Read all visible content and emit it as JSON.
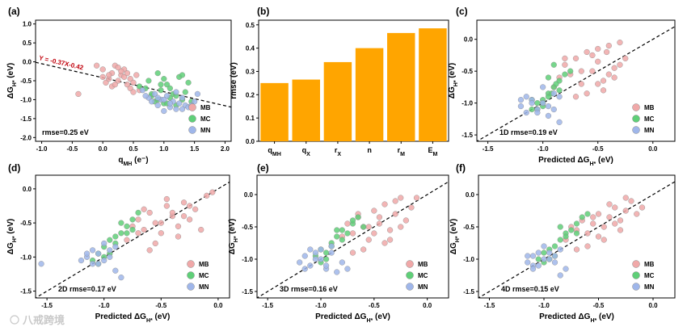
{
  "colors": {
    "MB": "#f0a8a8",
    "MC": "#5fcf78",
    "MN": "#9fb6ea",
    "bar": "#ffa500",
    "fit_line": "#c0000b"
  },
  "watermark": "八戒跨境",
  "chart_data": [
    {
      "panel": "(a)",
      "type": "scatter",
      "xlabel": "q",
      "xlabel_sub": "MH",
      "xlabel_unit": " (e⁻)",
      "ylabel": "ΔG",
      "ylabel_sub": "H*",
      "ylabel_unit": " (eV)",
      "xlim": [
        -1.1,
        2.1
      ],
      "ylim": [
        -2.1,
        1.1
      ],
      "xticks": [
        -1.0,
        -0.5,
        0.0,
        0.5,
        1.0,
        1.5,
        2.0
      ],
      "yticks": [
        1.0,
        0.5,
        0.0,
        -0.5,
        -1.0,
        -1.5,
        -2.0
      ],
      "fit": {
        "slope": -0.37,
        "intercept": -0.42,
        "label": "Y = -0.37X-0.42"
      },
      "annotation": "rmse=0.25 eV",
      "legend": [
        "MB",
        "MC",
        "MN"
      ],
      "series": [
        {
          "name": "MB",
          "x": [
            -0.4,
            -0.1,
            0.0,
            0.05,
            0.1,
            0.15,
            0.2,
            0.25,
            0.3,
            0.35,
            0.4,
            0.45,
            0.5,
            0.55,
            0.6,
            0.15,
            0.3,
            0.45,
            0.0,
            0.2,
            0.35,
            0.5,
            0.25,
            0.4,
            0.1
          ],
          "y": [
            -0.85,
            -0.1,
            -0.4,
            -0.55,
            -0.45,
            -0.3,
            -0.1,
            -0.5,
            -0.35,
            -0.2,
            -0.6,
            -0.45,
            -0.55,
            -0.35,
            -0.75,
            -0.65,
            -0.25,
            -0.7,
            -0.2,
            -0.6,
            -0.4,
            -0.8,
            -0.15,
            -0.3,
            -0.35
          ]
        },
        {
          "name": "MC",
          "x": [
            0.6,
            0.7,
            0.75,
            0.8,
            0.85,
            0.9,
            0.95,
            1.0,
            1.05,
            1.1,
            1.15,
            1.2,
            1.25,
            1.3,
            1.35,
            1.4,
            1.45,
            0.9,
            1.0,
            1.1,
            0.8,
            1.2,
            1.3,
            0.95,
            1.05
          ],
          "y": [
            -0.65,
            -0.7,
            -0.5,
            -0.9,
            -1.05,
            -0.3,
            -0.75,
            -1.1,
            -0.6,
            -0.95,
            -0.85,
            -1.15,
            -0.4,
            -1.0,
            -0.8,
            -0.55,
            -1.05,
            -1.0,
            -0.45,
            -0.7,
            -0.85,
            -0.9,
            -0.35,
            -0.6,
            -1.1
          ]
        },
        {
          "name": "MN",
          "x": [
            0.65,
            0.75,
            0.8,
            0.85,
            0.9,
            0.95,
            1.0,
            1.05,
            1.1,
            1.15,
            1.2,
            1.25,
            1.3,
            1.35,
            1.4,
            1.5,
            1.55,
            0.7,
            1.0,
            1.2,
            1.45,
            0.9,
            1.1,
            1.3
          ],
          "y": [
            -0.75,
            -0.95,
            -1.05,
            -0.85,
            -1.15,
            -1.0,
            -1.3,
            -0.9,
            -1.2,
            -1.05,
            -1.25,
            -1.1,
            -0.95,
            -1.15,
            -1.2,
            -1.05,
            -0.85,
            -0.9,
            -1.0,
            -0.8,
            -1.15,
            -0.95,
            -1.1,
            -1.25
          ]
        }
      ]
    },
    {
      "panel": "(b)",
      "type": "bar",
      "ylabel": "rmse (eV)",
      "categories": [
        {
          "base": "q",
          "sub": "MH"
        },
        {
          "base": "q",
          "sub": "X"
        },
        {
          "base": "r",
          "sub": "X"
        },
        {
          "base": "n",
          "sub": ""
        },
        {
          "base": "r",
          "sub": "M"
        },
        {
          "base": "E",
          "sub": "M"
        }
      ],
      "values": [
        0.25,
        0.265,
        0.34,
        0.4,
        0.465,
        0.485
      ],
      "ylim": [
        0,
        0.52
      ],
      "yticks": [
        0.0,
        0.1,
        0.2,
        0.3,
        0.4,
        0.5
      ]
    },
    {
      "panel": "(c)",
      "type": "scatter",
      "xlabel": "Predicted ΔG",
      "xlabel_sub": "H*",
      "xlabel_unit": " (eV)",
      "ylabel": "ΔG",
      "ylabel_sub": "H*",
      "ylabel_unit": " (eV)",
      "xlim": [
        -1.6,
        0.2
      ],
      "ylim": [
        -1.6,
        0.3
      ],
      "xticks": [
        -1.5,
        -1.0,
        -0.5,
        0.0
      ],
      "yticks": [
        0.0,
        -0.5,
        -1.0,
        -1.5
      ],
      "annotation": "1D rmse=0.19 eV",
      "legend": [
        "MB",
        "MC",
        "MN"
      ],
      "series": [
        {
          "name": "MB",
          "x": [
            -0.9,
            -0.85,
            -0.8,
            -0.75,
            -0.7,
            -0.65,
            -0.6,
            -0.55,
            -0.5,
            -0.45,
            -0.4,
            -0.35,
            -0.3,
            -0.25,
            -0.7,
            -0.6,
            -0.5,
            -0.4,
            -0.3,
            -0.55,
            -0.45,
            -0.65,
            -0.35,
            -0.8,
            -0.5,
            -0.42
          ],
          "y": [
            -0.75,
            -0.6,
            -0.4,
            -0.55,
            -0.3,
            -0.7,
            -0.2,
            -0.5,
            -0.35,
            -0.65,
            -0.1,
            -0.45,
            -0.05,
            -0.3,
            -0.9,
            -0.85,
            -0.15,
            -0.55,
            -0.4,
            -0.25,
            -0.8,
            -0.5,
            -0.6,
            -0.3,
            -0.7,
            -0.2
          ]
        },
        {
          "name": "MC",
          "x": [
            -1.1,
            -1.05,
            -1.0,
            -0.95,
            -0.9,
            -0.85,
            -0.8,
            -1.0,
            -0.9,
            -0.95,
            -1.05,
            -0.85,
            -0.75,
            -1.1,
            -0.95,
            -0.88,
            -1.0,
            -0.92
          ],
          "y": [
            -1.1,
            -1.0,
            -0.95,
            -0.85,
            -0.75,
            -0.65,
            -0.55,
            -1.05,
            -0.4,
            -0.9,
            -1.1,
            -0.8,
            -0.5,
            -0.95,
            -0.6,
            -0.7,
            -1.0,
            -0.85
          ]
        },
        {
          "name": "MN",
          "x": [
            -1.2,
            -1.15,
            -1.1,
            -1.05,
            -1.0,
            -0.95,
            -0.9,
            -0.85,
            -1.15,
            -1.1,
            -1.05,
            -1.0,
            -0.95,
            -1.2,
            -0.9,
            -0.85
          ],
          "y": [
            -1.05,
            -1.15,
            -0.95,
            -1.1,
            -1.0,
            -1.2,
            -0.85,
            -1.3,
            -0.9,
            -1.0,
            -1.15,
            -0.75,
            -1.05,
            -0.95,
            -1.1,
            -0.9
          ]
        }
      ]
    },
    {
      "panel": "(d)",
      "type": "scatter",
      "xlabel": "Predicted ΔG",
      "xlabel_sub": "H*",
      "xlabel_unit": " (eV)",
      "ylabel": "ΔG",
      "ylabel_sub": "H*",
      "ylabel_unit": " (eV)",
      "xlim": [
        -1.6,
        0.1
      ],
      "ylim": [
        -1.6,
        0.2
      ],
      "xticks": [
        -1.5,
        -1.0,
        -0.5,
        0.0
      ],
      "yticks": [
        0.0,
        -0.5,
        -1.0,
        -1.5
      ],
      "annotation": "2D rmse=0.17 eV",
      "legend": [
        "MB",
        "MC",
        "MN"
      ],
      "series": [
        {
          "name": "MB",
          "x": [
            -0.8,
            -0.75,
            -0.7,
            -0.65,
            -0.6,
            -0.55,
            -0.5,
            -0.45,
            -0.4,
            -0.35,
            -0.3,
            -0.25,
            -0.2,
            -0.15,
            -0.1,
            -0.65,
            -0.55,
            -0.45,
            -0.35,
            -0.6,
            -0.5,
            -0.4,
            -0.3,
            -0.7,
            -0.05,
            -0.25
          ],
          "y": [
            -0.75,
            -0.55,
            -0.45,
            -0.6,
            -0.35,
            -0.5,
            -0.65,
            -0.25,
            -0.4,
            -0.55,
            -0.2,
            -0.45,
            -0.3,
            -0.6,
            -0.1,
            -0.3,
            -0.8,
            -0.15,
            -0.7,
            -0.9,
            -0.5,
            -0.35,
            -0.4,
            -0.65,
            -0.05,
            -0.25
          ]
        },
        {
          "name": "MC",
          "x": [
            -1.1,
            -1.05,
            -1.0,
            -0.95,
            -0.9,
            -0.85,
            -0.8,
            -0.75,
            -0.7,
            -1.0,
            -0.9,
            -0.8,
            -0.95,
            -0.85,
            -0.75,
            -1.05
          ],
          "y": [
            -1.05,
            -0.95,
            -0.85,
            -0.75,
            -0.7,
            -0.65,
            -0.55,
            -0.45,
            -0.35,
            -1.0,
            -0.8,
            -0.65,
            -0.95,
            -0.5,
            -0.6,
            -1.1
          ]
        },
        {
          "name": "MN",
          "x": [
            -1.55,
            -1.2,
            -1.15,
            -1.1,
            -1.05,
            -1.0,
            -0.95,
            -0.9,
            -1.15,
            -1.05,
            -1.0,
            -0.95,
            -0.9,
            -1.1,
            -0.85
          ],
          "y": [
            -1.1,
            -1.05,
            -1.0,
            -1.1,
            -0.95,
            -1.05,
            -0.9,
            -1.2,
            -0.95,
            -1.1,
            -0.8,
            -1.0,
            -0.85,
            -0.9,
            -1.3
          ]
        }
      ]
    },
    {
      "panel": "(e)",
      "type": "scatter",
      "xlabel": "Predicted ΔG",
      "xlabel_sub": "H*",
      "xlabel_unit": " (eV)",
      "ylabel": "ΔG",
      "ylabel_sub": "H*",
      "ylabel_unit": " (eV)",
      "xlim": [
        -1.6,
        0.2
      ],
      "ylim": [
        -1.6,
        0.3
      ],
      "xticks": [
        -1.5,
        -1.0,
        -0.5,
        0.0
      ],
      "yticks": [
        0.0,
        -0.5,
        -1.0,
        -1.5
      ],
      "annotation": "3D rmse=0.16 eV",
      "legend": [
        "MB",
        "MC",
        "MN"
      ],
      "series": [
        {
          "name": "MB",
          "x": [
            -0.8,
            -0.75,
            -0.7,
            -0.65,
            -0.6,
            -0.55,
            -0.5,
            -0.45,
            -0.4,
            -0.35,
            -0.3,
            -0.25,
            -0.2,
            -0.15,
            -0.6,
            -0.5,
            -0.4,
            -0.3,
            -0.45,
            -0.55,
            -0.35,
            -0.25,
            -0.65,
            -0.1,
            -0.7
          ],
          "y": [
            -0.65,
            -0.45,
            -0.6,
            -0.35,
            -0.5,
            -0.7,
            -0.25,
            -0.45,
            -0.15,
            -0.55,
            -0.3,
            -0.05,
            -0.4,
            -0.2,
            -0.85,
            -0.6,
            -0.75,
            -0.1,
            -0.35,
            -0.5,
            -0.7,
            -0.5,
            -0.3,
            -0.05,
            -0.9
          ]
        },
        {
          "name": "MC",
          "x": [
            -1.05,
            -1.0,
            -0.95,
            -0.9,
            -0.85,
            -0.8,
            -0.75,
            -0.7,
            -0.65,
            -0.6,
            -0.9,
            -0.8,
            -0.95,
            -0.85,
            -1.0,
            -0.7
          ],
          "y": [
            -0.95,
            -0.85,
            -0.9,
            -0.75,
            -0.65,
            -0.55,
            -0.6,
            -0.45,
            -0.35,
            -0.5,
            -0.8,
            -0.7,
            -1.0,
            -0.55,
            -1.05,
            -0.4
          ]
        },
        {
          "name": "MN",
          "x": [
            -1.2,
            -1.15,
            -1.1,
            -1.05,
            -1.0,
            -0.95,
            -0.9,
            -0.85,
            -0.8,
            -1.15,
            -1.05,
            -1.0,
            -0.95,
            -0.9,
            -1.1,
            -0.75
          ],
          "y": [
            -1.05,
            -0.95,
            -1.1,
            -1.0,
            -0.85,
            -1.15,
            -0.9,
            -1.2,
            -1.05,
            -1.15,
            -0.9,
            -1.0,
            -1.1,
            -0.8,
            -0.85,
            -1.15
          ]
        }
      ]
    },
    {
      "panel": "(f)",
      "type": "scatter",
      "xlabel": "Predicted ΔG",
      "xlabel_sub": "H*",
      "xlabel_unit": " (eV)",
      "ylabel": "ΔG",
      "ylabel_sub": "H*",
      "ylabel_unit": " (eV)",
      "xlim": [
        -1.6,
        0.2
      ],
      "ylim": [
        -1.6,
        0.3
      ],
      "xticks": [
        -1.5,
        -1.0,
        -0.5,
        0.0
      ],
      "yticks": [
        0.0,
        -0.5,
        -1.0,
        -1.5
      ],
      "annotation": "4D rmse=0.15 eV",
      "legend": [
        "MB",
        "MC",
        "MN"
      ],
      "series": [
        {
          "name": "MB",
          "x": [
            -0.8,
            -0.75,
            -0.7,
            -0.65,
            -0.6,
            -0.55,
            -0.5,
            -0.45,
            -0.4,
            -0.35,
            -0.3,
            -0.25,
            -0.2,
            -0.15,
            -0.6,
            -0.5,
            -0.4,
            -0.3,
            -0.55,
            -0.45,
            -0.35,
            -0.25,
            -0.1,
            -0.7
          ],
          "y": [
            -0.7,
            -0.5,
            -0.55,
            -0.4,
            -0.6,
            -0.45,
            -0.3,
            -0.5,
            -0.35,
            -0.2,
            -0.4,
            -0.25,
            -0.1,
            -0.3,
            -0.8,
            -0.65,
            -0.15,
            -0.55,
            -0.35,
            -0.7,
            -0.45,
            -0.05,
            -0.2,
            -0.85
          ]
        },
        {
          "name": "MC",
          "x": [
            -1.05,
            -1.0,
            -0.95,
            -0.9,
            -0.85,
            -0.8,
            -0.75,
            -0.7,
            -0.65,
            -0.6,
            -0.9,
            -0.8,
            -0.95,
            -0.85,
            -0.7,
            -1.0
          ],
          "y": [
            -1.0,
            -0.9,
            -0.85,
            -0.8,
            -0.7,
            -0.6,
            -0.55,
            -0.45,
            -0.35,
            -0.3,
            -0.95,
            -0.65,
            -1.0,
            -0.5,
            -0.6,
            -1.05
          ]
        },
        {
          "name": "MN",
          "x": [
            -1.15,
            -1.1,
            -1.05,
            -1.0,
            -0.95,
            -0.9,
            -0.85,
            -0.8,
            -1.15,
            -1.1,
            -1.05,
            -1.0,
            -0.95,
            -0.9,
            -1.1,
            -0.85
          ],
          "y": [
            -1.05,
            -0.95,
            -1.1,
            -1.0,
            -0.9,
            -1.05,
            -0.85,
            -1.15,
            -0.95,
            -1.1,
            -0.9,
            -0.8,
            -1.0,
            -0.95,
            -1.15,
            -1.25
          ]
        }
      ]
    }
  ]
}
